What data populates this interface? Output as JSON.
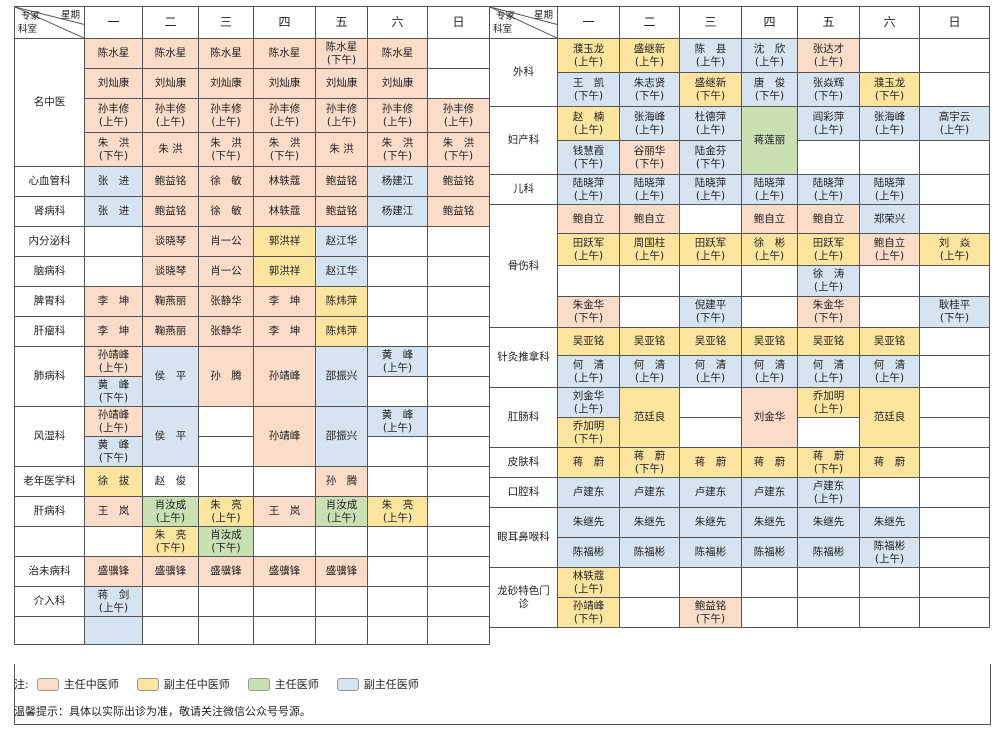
{
  "corner": {
    "expert": "专家",
    "weekday": "星期",
    "dept": "科室"
  },
  "days": [
    "一",
    "二",
    "三",
    "四",
    "五",
    "六",
    "日"
  ],
  "colors": {
    "chief_tcm": "#fbdcc8",
    "assoc_tcm": "#fde5a0",
    "chief": "#c9e0b3",
    "assoc": "#d6e4f2"
  },
  "left": {
    "cats": {
      "mingzhongyi": "名中医",
      "xinxueguan": "心血管科",
      "shenbing": "肾病科",
      "neifenmi": "内分泌科",
      "naobing": "脑病科",
      "piwei": "脾胃科",
      "ganliu": "肝瘤科",
      "feibing": "肺病科",
      "fengshi": "风湿科",
      "laonian": "老年医学科",
      "ganbing": "肝病科",
      "zhiwei": "治未病科",
      "jieru": "介入科"
    },
    "r1": [
      "陈水星",
      "陈水星",
      "陈水星",
      "陈水星",
      "陈水星",
      "(下午)",
      "陈水星"
    ],
    "r2": [
      "刘灿康",
      "刘灿康",
      "刘灿康",
      "刘灿康",
      "刘灿康",
      "刘灿康"
    ],
    "r3": {
      "name": "孙丰修",
      "am": "(上午)"
    },
    "r4": {
      "zhu_hong_spaced": "朱　洪",
      "zhu_hong": "朱 洪",
      "pm": "(下午)"
    },
    "xin": [
      "张　进",
      "鲍益铭",
      "徐　敏",
      "林轶蔻",
      "鲍益铭",
      "杨建江",
      "鲍益铭"
    ],
    "shen": [
      "张　进",
      "鲍益铭",
      "徐　敏",
      "林轶蔻",
      "鲍益铭",
      "杨建江",
      "鲍益铭"
    ],
    "nei": [
      "谈晓琴",
      "肖一公",
      "郭洪祥",
      "赵江华"
    ],
    "nao": [
      "谈晓琴",
      "肖一公",
      "郭洪祥",
      "赵江华"
    ],
    "pi": [
      "李　坤",
      "鞠燕丽",
      "张静华",
      "李　坤",
      "陈炜萍"
    ],
    "gan": [
      "李　坤",
      "鞠燕丽",
      "张静华",
      "李　坤",
      "陈炜萍"
    ],
    "fei": {
      "sun": "孙靖峰",
      "am": "(上午)",
      "huang": "黄　峰",
      "pm": "(下午)",
      "hou": "侯　平",
      "sunteng": "孙　腾",
      "sun2": "孙靖峰",
      "shao": "邵振兴",
      "huang_sat": "黄　峰",
      "am2": "(上午)"
    },
    "feng": {
      "sun": "孙靖峰",
      "am": "(上午)",
      "huang": "黄　峰",
      "pm": "(下午)",
      "hou": "侯　平",
      "sun2": "孙靖峰",
      "shao": "邵振兴",
      "huang_sat": "黄　峰",
      "am2": "(上午)"
    },
    "lao": [
      "徐　拔",
      "赵　俊",
      "孙　腾"
    ],
    "ganb": {
      "wang": "王　岚",
      "xiao": "肖汝成",
      "am": "(上午)",
      "zhu": "朱　亮",
      "pm": "(下午)"
    },
    "zhiwei": [
      "盛骥锋",
      "盛骥锋",
      "盛骥锋",
      "盛骥锋",
      "盛骥锋"
    ],
    "jieru": {
      "name": "蒋　剑",
      "am": "(上午)"
    }
  },
  "right": {
    "cats": {
      "waike": "外科",
      "fuchan": "妇产科",
      "erke": "儿科",
      "gushang": "骨伤科",
      "zhenjiu": "针灸推拿科",
      "gangchang": "肛肠科",
      "pifu": "皮肤科",
      "kouqiang": "口腔科",
      "eryan": "眼耳鼻喉科",
      "longsha": "龙砂特色门诊"
    },
    "wai1": [
      "濮玉龙",
      "盛继新",
      "陈　县",
      "沈　欣",
      "张达才"
    ],
    "wai2": [
      "王　凯",
      "朱志贤",
      "盛继新",
      "唐　俊",
      "张焱辉",
      "濮玉龙"
    ],
    "fu1": [
      "赵　楠",
      "张海峰",
      "杜德萍",
      "阎彩萍",
      "张海峰",
      "高宇云"
    ],
    "fu_mid": "蒋莲丽",
    "fu2": [
      "钱慧霞",
      "谷丽华",
      "陆金芬"
    ],
    "er": [
      "陆晓萍",
      "陆晓萍",
      "陆晓萍",
      "陆晓萍",
      "陆晓萍",
      "陆晓萍"
    ],
    "gu1": [
      "鲍自立",
      "鲍自立",
      "鲍自立",
      "鲍自立",
      "郑荣兴"
    ],
    "gu2": [
      "田跃军",
      "周国柱",
      "田跃军",
      "徐　彬",
      "田跃军",
      "鲍自立",
      "刘　焱"
    ],
    "gu3": "徐　涛",
    "gu4": [
      "朱金华",
      "倪建平",
      "朱金华",
      "耿桂平"
    ],
    "zj1": [
      "吴亚铭",
      "吴亚铭",
      "吴亚铭",
      "吴亚铭",
      "吴亚铭",
      "吴亚铭"
    ],
    "zj2": [
      "何　清",
      "何　清",
      "何　清",
      "何　清",
      "何　清",
      "何　清"
    ],
    "gc": {
      "liu": "刘金华",
      "qiao": "乔加明",
      "fan": "范廷良",
      "liu2": "刘金华",
      "qiao2": "乔加明",
      "fan2": "范廷良"
    },
    "pf": [
      "蒋　蔚",
      "蒋　蔚",
      "蒋　蔚",
      "蒋　蔚",
      "蒋　蔚",
      "蒋　蔚"
    ],
    "kq": [
      "卢建东",
      "卢建东",
      "卢建东",
      "卢建东",
      "卢建东"
    ],
    "ey1": [
      "朱继先",
      "朱继先",
      "朱继先",
      "朱继先",
      "朱继先",
      "朱继先"
    ],
    "ey2": [
      "陈福彬",
      "陈福彬",
      "陈福彬",
      "陈福彬",
      "陈福彬",
      "陈福彬"
    ],
    "ls1": "林轶蔻",
    "ls2": [
      "孙靖峰",
      "鲍益铭"
    ],
    "am": "(上午)",
    "pm": "(下午)"
  },
  "footer": {
    "note_label": "注:",
    "legend": [
      "主任中医师",
      "副主任中医师",
      "主任医师",
      "副主任医师"
    ],
    "tip": "温馨提示：具体以实际出诊为准，敬请关注微信公众号号源。"
  }
}
